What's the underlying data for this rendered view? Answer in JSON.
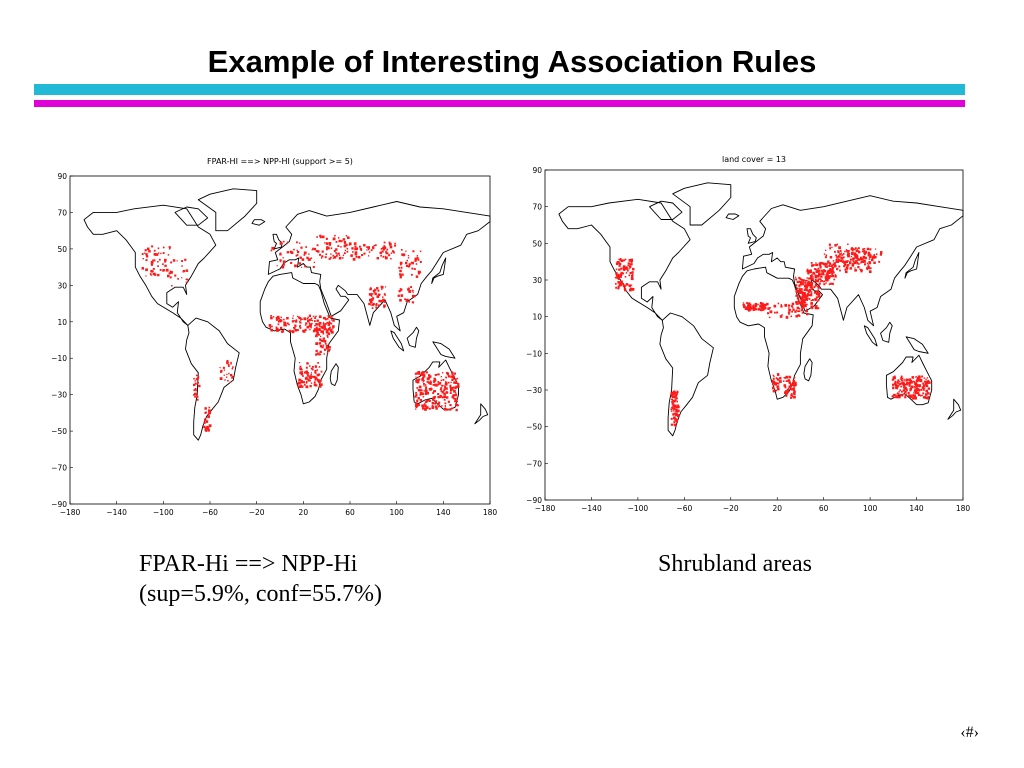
{
  "slide": {
    "title": "Example of Interesting Association Rules",
    "page_number": "‹#›",
    "accent_cyan": "#22b9d6",
    "accent_magenta": "#e000d8"
  },
  "maps": [
    {
      "title": "FPAR-HI ==> NPP-HI (support >= 5)",
      "y_ticks": [
        "90",
        "70",
        "50",
        "30",
        "10",
        "−10",
        "−30",
        "−50",
        "−70",
        "−90"
      ],
      "x_ticks": [
        "−180",
        "−140",
        "−100",
        "−60",
        "−20",
        "20",
        "60",
        "100",
        "140",
        "180"
      ],
      "highlight_color": "#ff1a1a"
    },
    {
      "title": "land cover = 13",
      "y_ticks": [
        "90",
        "70",
        "50",
        "30",
        "10",
        "−10",
        "−30",
        "−50",
        "−70",
        "−90"
      ],
      "x_ticks": [
        "−180",
        "−140",
        "−100",
        "−60",
        "−20",
        "20",
        "60",
        "100",
        "140",
        "180"
      ],
      "highlight_color": "#ff1a1a"
    }
  ],
  "captions": {
    "left_line1": "FPAR-Hi ==> NPP-Hi",
    "left_line2": "(sup=5.9%, conf=55.7%)",
    "right": "Shrubland areas"
  }
}
